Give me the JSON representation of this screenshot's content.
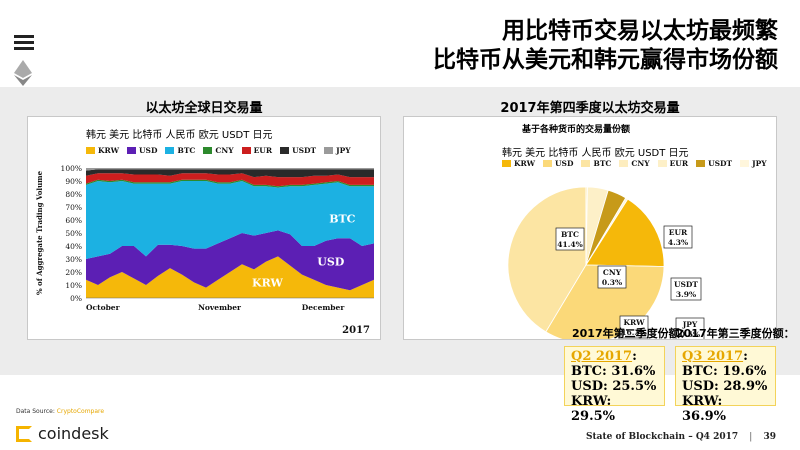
{
  "headline": {
    "line1": "用比特币交易以太坊最频繁",
    "line2": "比特币从美元和韩元赢得市场份额"
  },
  "left_panel_title": "以太坊全球日交易量",
  "right_panel_title": "2017年第四季度以太坊交易量",
  "left_legend_cn": "韩元  美元  比特币  人民币  欧元  USDT  日元",
  "right_legend_cn": "韩元  美元  比特币  人民币  欧元  USDT  日元",
  "pie_subtitle": "基于各种货币的交易量份额",
  "q2": {
    "title": "2017年第二季度份额：",
    "label": "Q2 2017",
    "lines": [
      "BTC: 31.6%",
      "USD: 25.5%",
      "KRW: 29.5%"
    ]
  },
  "q3": {
    "title": "2017年第三季度份额：",
    "label": "Q3 2017",
    "lines": [
      "BTC: 19.6%",
      "USD: 28.9%",
      "KRW: 36.9%"
    ]
  },
  "source": {
    "prefix": "Data Source:",
    "name": "CryptoCompare"
  },
  "brand": "coindesk",
  "footer": {
    "title": "State of Blockchain – Q4 2017",
    "sep": "|",
    "page": "39"
  },
  "colors": {
    "KRW": "#f5b80a",
    "USD": "#5c1fb4",
    "BTC": "#1cb1e2",
    "CNY": "#2d8a2d",
    "EUR": "#cc1e1e",
    "USDT": "#2a2a2a",
    "JPY": "#9a9a9a"
  },
  "chart_data": [
    {
      "type": "area",
      "title": "以太坊全球日交易量",
      "ylabel": "% of Aggregate Trading Volume",
      "ylim": [
        0,
        100
      ],
      "y_ticks": [
        "0%",
        "10%",
        "20%",
        "30%",
        "40%",
        "50%",
        "60%",
        "70%",
        "80%",
        "90%",
        "100%"
      ],
      "x_ticks": [
        "October",
        "November",
        "December"
      ],
      "year_label": "2017",
      "stacked_percent": true,
      "series_names": [
        "KRW",
        "USD",
        "BTC",
        "CNY",
        "EUR",
        "USDT",
        "JPY"
      ],
      "legend": [
        {
          "key": "KRW",
          "label": "KRW"
        },
        {
          "key": "USD",
          "label": "USD"
        },
        {
          "key": "BTC",
          "label": "BTC"
        },
        {
          "key": "CNY",
          "label": "CNY"
        },
        {
          "key": "EUR",
          "label": "EUR"
        },
        {
          "key": "USDT",
          "label": "USDT"
        },
        {
          "key": "JPY",
          "label": "JPY"
        }
      ],
      "in_chart_labels": [
        "BTC",
        "USD",
        "KRW"
      ],
      "approx_series": {
        "KRW": [
          14,
          10,
          16,
          20,
          15,
          10,
          17,
          23,
          18,
          12,
          8,
          14,
          20,
          26,
          22,
          28,
          32,
          25,
          18,
          14,
          10,
          8,
          6,
          10,
          14
        ],
        "USD": [
          16,
          22,
          18,
          20,
          25,
          22,
          24,
          18,
          22,
          26,
          30,
          28,
          26,
          24,
          26,
          22,
          20,
          24,
          22,
          26,
          34,
          38,
          40,
          30,
          28
        ],
        "BTC": [
          57,
          58,
          55,
          50,
          48,
          56,
          47,
          47,
          50,
          52,
          52,
          46,
          42,
          40,
          38,
          36,
          33,
          37,
          46,
          47,
          44,
          43,
          40,
          46,
          44
        ],
        "CNY": [
          1,
          1,
          1,
          1,
          1,
          1,
          1,
          1,
          1,
          1,
          1,
          1,
          1,
          1,
          1,
          1,
          1,
          1,
          1,
          1,
          1,
          1,
          1,
          1,
          1
        ],
        "EUR": [
          6,
          5,
          6,
          5,
          6,
          6,
          6,
          5,
          5,
          5,
          5,
          6,
          6,
          5,
          6,
          7,
          7,
          6,
          6,
          6,
          5,
          5,
          6,
          6,
          6
        ],
        "USDT": [
          4,
          3,
          3,
          3,
          4,
          4,
          4,
          5,
          3,
          3,
          3,
          4,
          4,
          3,
          6,
          5,
          6,
          6,
          6,
          5,
          5,
          4,
          6,
          6,
          6
        ],
        "JPY": [
          2,
          1,
          1,
          1,
          1,
          1,
          1,
          1,
          1,
          1,
          1,
          1,
          1,
          1,
          1,
          1,
          1,
          1,
          1,
          1,
          1,
          1,
          1,
          1,
          1
        ]
      }
    },
    {
      "type": "pie",
      "title": "2017年第四季度以太坊交易量",
      "subtitle": "基于各种货币的交易量份额",
      "legend": [
        {
          "key": "KRW",
          "label": "KRW"
        },
        {
          "key": "USD",
          "label": "USD"
        },
        {
          "key": "BTC",
          "label": "BTC"
        },
        {
          "key": "CNY",
          "label": "CNY"
        },
        {
          "key": "EUR",
          "label": "EUR"
        },
        {
          "key": "USDT",
          "label": "USDT"
        },
        {
          "key": "JPY",
          "label": "JPY"
        }
      ],
      "slices": [
        {
          "name": "BTC",
          "value": 41.4,
          "label": "BTC",
          "pct": "41.4%",
          "color": "#fce5a3"
        },
        {
          "name": "CNY",
          "value": 0.3,
          "label": "CNY",
          "pct": "0.3%",
          "color": "#fdedbf"
        },
        {
          "name": "EUR",
          "value": 4.3,
          "label": "EUR",
          "pct": "4.3%",
          "color": "#fdf0c8"
        },
        {
          "name": "USDT",
          "value": 3.9,
          "label": "USDT",
          "pct": "3.9%",
          "color": "#c79a19"
        },
        {
          "name": "JPY",
          "value": 0.5,
          "label": "JPY",
          "pct": "0.5%",
          "color": "#fff6dc"
        },
        {
          "name": "KRW",
          "value": 16.3,
          "label": "KRW",
          "pct": "16.3%",
          "color": "#f5b80a"
        },
        {
          "name": "USD",
          "value": 33.3,
          "label": "USD",
          "pct": "33.3%",
          "color": "#fbd979"
        }
      ]
    }
  ]
}
